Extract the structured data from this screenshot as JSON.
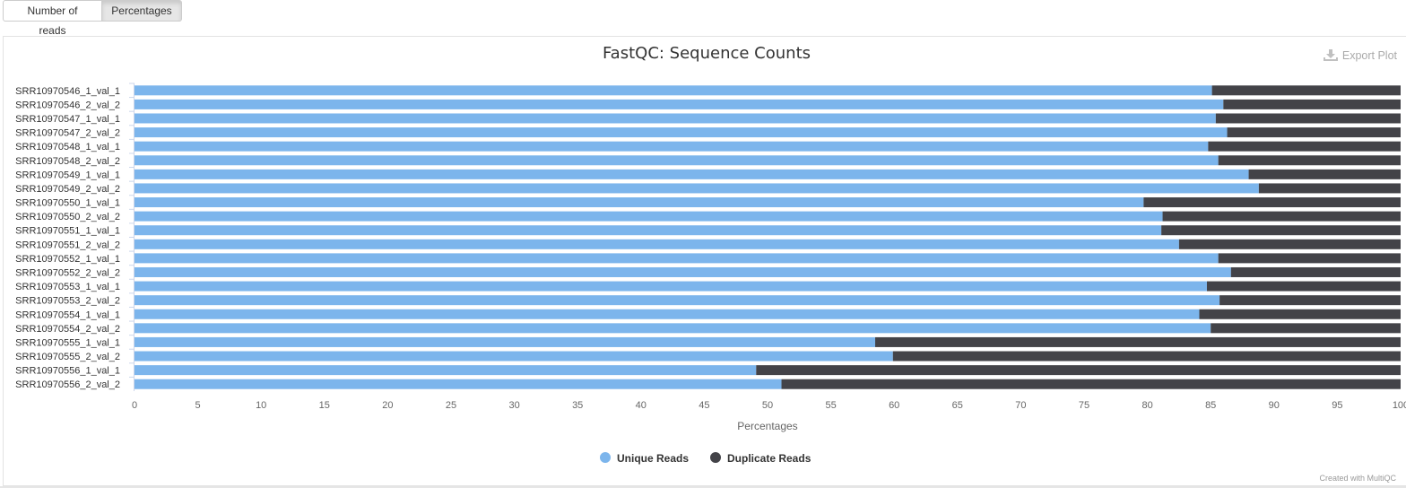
{
  "controls": {
    "buttons": [
      {
        "label": "Number of reads",
        "active": false
      },
      {
        "label": "Percentages",
        "active": true
      }
    ],
    "export_label": "Export Plot"
  },
  "credit": "Created with MultiQC",
  "colors": {
    "unique": "#7cb5ec",
    "duplicate": "#434348"
  },
  "chart_data": {
    "type": "bar",
    "orientation": "horizontal",
    "stacked": true,
    "title": "FastQC: Sequence Counts",
    "xlabel": "Percentages",
    "xlim": [
      0,
      100
    ],
    "xticks": [
      0,
      5,
      10,
      15,
      20,
      25,
      30,
      35,
      40,
      45,
      50,
      55,
      60,
      65,
      70,
      75,
      80,
      85,
      90,
      95,
      100
    ],
    "legend_position": "bottom-center",
    "categories": [
      "SRR10970546_1_val_1",
      "SRR10970546_2_val_2",
      "SRR10970547_1_val_1",
      "SRR10970547_2_val_2",
      "SRR10970548_1_val_1",
      "SRR10970548_2_val_2",
      "SRR10970549_1_val_1",
      "SRR10970549_2_val_2",
      "SRR10970550_1_val_1",
      "SRR10970550_2_val_2",
      "SRR10970551_1_val_1",
      "SRR10970551_2_val_2",
      "SRR10970552_1_val_1",
      "SRR10970552_2_val_2",
      "SRR10970553_1_val_1",
      "SRR10970553_2_val_2",
      "SRR10970554_1_val_1",
      "SRR10970554_2_val_2",
      "SRR10970555_1_val_1",
      "SRR10970555_2_val_2",
      "SRR10970556_1_val_1",
      "SRR10970556_2_val_2"
    ],
    "series": [
      {
        "name": "Unique Reads",
        "values": [
          85.1,
          86.0,
          85.4,
          86.3,
          84.8,
          85.6,
          88.0,
          88.8,
          79.7,
          81.2,
          81.1,
          82.5,
          85.6,
          86.6,
          84.7,
          85.7,
          84.1,
          85.0,
          58.5,
          59.9,
          49.1,
          51.1
        ]
      },
      {
        "name": "Duplicate Reads",
        "values": [
          14.9,
          14.0,
          14.6,
          13.7,
          15.2,
          14.4,
          12.0,
          11.2,
          20.3,
          18.8,
          18.9,
          17.5,
          14.4,
          13.4,
          15.3,
          14.3,
          15.9,
          15.0,
          41.5,
          40.1,
          50.9,
          48.9
        ]
      }
    ]
  }
}
